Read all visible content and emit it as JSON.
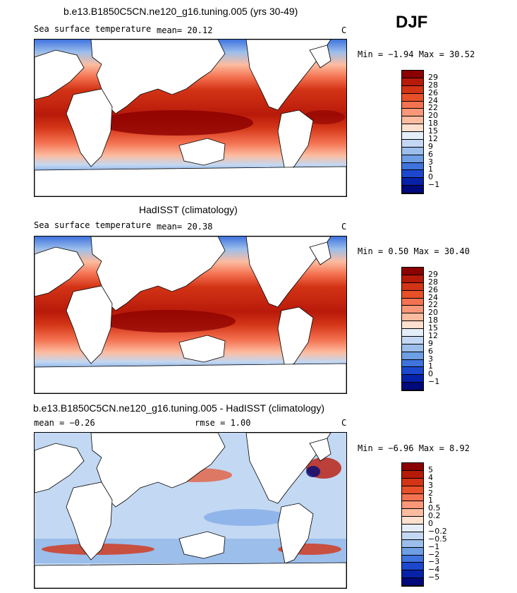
{
  "season": "DJF",
  "panels": [
    {
      "title": "b.e13.B1850C5CN.ne120_g16.tuning.005 (yrs 30-49)",
      "field": "Sea surface temperature",
      "stat1": "mean=  20.12",
      "stat2": "",
      "unit": "C",
      "minmax": "Min =  −1.94 Max =  30.52",
      "colorbar": {
        "labels": [
          "29",
          "28",
          "26",
          "24",
          "22",
          "20",
          "18",
          "15",
          "12",
          "9",
          "6",
          "3",
          "1",
          "0",
          "−1"
        ],
        "colors": [
          "#8b0000",
          "#b81a0a",
          "#d33416",
          "#e8502a",
          "#f47251",
          "#f99778",
          "#fcbca0",
          "#fde0cd",
          "#e4eef8",
          "#c3d8f2",
          "#9bbeeb",
          "#6e9ee4",
          "#3f73de",
          "#1c47cf",
          "#0622a8",
          "#000a7a"
        ]
      }
    },
    {
      "title": "HadISST (climatology)",
      "field": "Sea surface temperature",
      "stat1": "mean=  20.38",
      "stat2": "",
      "unit": "C",
      "minmax": "Min =   0.50 Max =  30.40",
      "colorbar": {
        "labels": [
          "29",
          "28",
          "26",
          "24",
          "22",
          "20",
          "18",
          "15",
          "12",
          "9",
          "6",
          "3",
          "1",
          "0",
          "−1"
        ],
        "colors": [
          "#8b0000",
          "#b81a0a",
          "#d33416",
          "#e8502a",
          "#f47251",
          "#f99778",
          "#fcbca0",
          "#fde0cd",
          "#e4eef8",
          "#c3d8f2",
          "#9bbeeb",
          "#6e9ee4",
          "#3f73de",
          "#1c47cf",
          "#0622a8",
          "#000a7a"
        ]
      }
    },
    {
      "title": "b.e13.B1850C5CN.ne120_g16.tuning.005 - HadISST (climatology)",
      "field": "",
      "stat1": "mean =  −0.26",
      "stat2": "rmse =   1.00",
      "unit": "C",
      "minmax": "Min =  −6.96 Max =   8.92",
      "colorbar": {
        "labels": [
          "5",
          "4",
          "3",
          "2",
          "1",
          "0.5",
          "0.2",
          "0",
          "−0.2",
          "−0.5",
          "−1",
          "−2",
          "−3",
          "−4",
          "−5"
        ],
        "colors": [
          "#8b0000",
          "#b81a0a",
          "#d33416",
          "#e8502a",
          "#f47251",
          "#f99778",
          "#fcbca0",
          "#fde0cd",
          "#e4eef8",
          "#c3d8f2",
          "#9bbeeb",
          "#6e9ee4",
          "#3f73de",
          "#1c47cf",
          "#0622a8",
          "#000a7a"
        ]
      }
    }
  ]
}
